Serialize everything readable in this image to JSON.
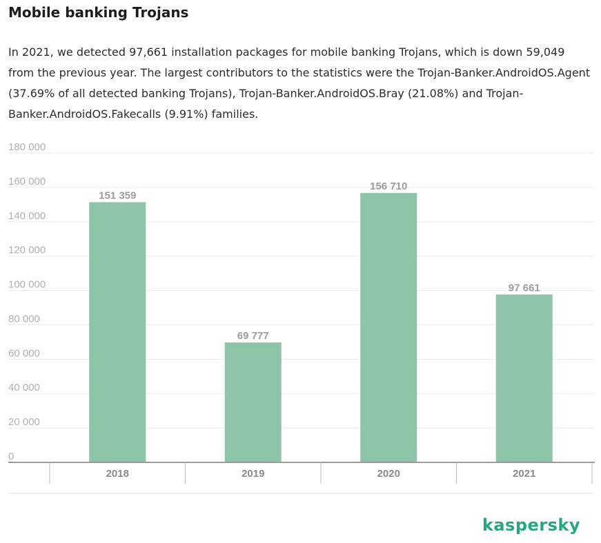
{
  "header": {
    "title": "Mobile banking Trojans",
    "description": "In 2021, we detected 97,661 installation packages for mobile banking Trojans, which is down 59,049 from the previous year. The largest contributors to the statistics were the Trojan-Banker.AndroidOS.Agent (37.69% of all detected banking Trojans), Trojan-Banker.AndroidOS.Bray (21.08%) and Trojan-Banker.AndroidOS.Fakecalls (9.91%) families."
  },
  "chart_data": {
    "type": "bar",
    "categories": [
      "2018",
      "2019",
      "2020",
      "2021"
    ],
    "values": [
      151359,
      69777,
      156710,
      97661
    ],
    "value_labels": [
      "151 359",
      "69 777",
      "156 710",
      "97 661"
    ],
    "ylim": [
      0,
      180000
    ],
    "yticks": [
      0,
      20000,
      40000,
      60000,
      80000,
      100000,
      120000,
      140000,
      160000,
      180000
    ],
    "ytick_labels": [
      "0",
      "20 000",
      "40 000",
      "60 000",
      "80 000",
      "100 000",
      "120 000",
      "140 000",
      "160 000",
      "180 000"
    ],
    "grid": true,
    "bar_color": "#8ec4a7"
  },
  "brand": {
    "logo_text": "kaspersky",
    "logo_color": "#24a783"
  }
}
